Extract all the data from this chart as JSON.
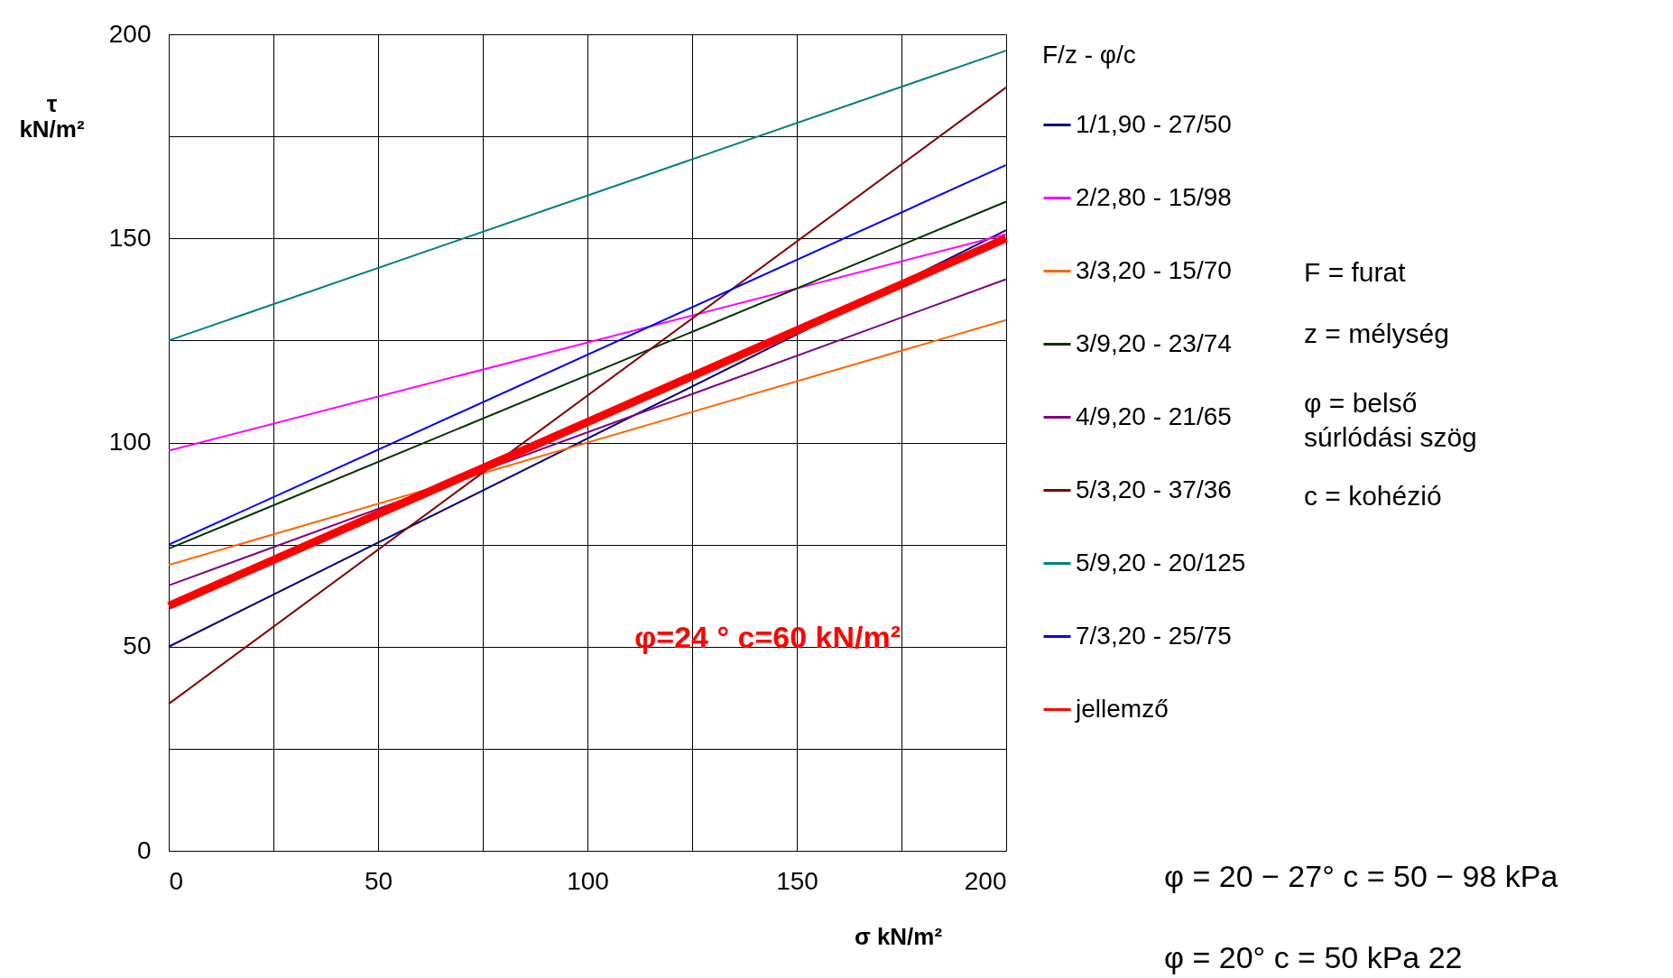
{
  "chart_data": {
    "type": "line",
    "xlabel": "σ  kN/m²",
    "ylabel": "τ\nkN/m²",
    "legend_title": "F/z   -   φ/c",
    "xlim": [
      0,
      200
    ],
    "ylim": [
      0,
      200
    ],
    "xticks": [
      0,
      {
        "value": 25,
        "label": null
      },
      50,
      {
        "value": 75,
        "label": null
      },
      100,
      {
        "value": 125,
        "label": null
      },
      150,
      {
        "value": 175,
        "label": null
      },
      200
    ],
    "yticks": [
      0,
      {
        "value": 25,
        "label": null
      },
      50,
      {
        "value": 75,
        "label": null
      },
      100,
      {
        "value": 125,
        "label": null
      },
      150,
      {
        "value": 175,
        "label": null
      },
      200
    ],
    "grid": true,
    "legend": "right",
    "marker": "none",
    "line_style": "solid",
    "x": [
      0,
      200
    ],
    "series": [
      {
        "name": "1/1,90 - 27/50",
        "color": "#000080",
        "values": [
          50,
          152
        ]
      },
      {
        "name": "2/2,80 - 15/98",
        "color": "#ff00ff",
        "values": [
          98,
          151
        ]
      },
      {
        "name": "3/3,20 - 15/70",
        "color": "#ff6600",
        "values": [
          70,
          130
        ]
      },
      {
        "name": "3/9,20 - 23/74",
        "color": "#003300",
        "values": [
          74,
          159
        ]
      },
      {
        "name": "4/9,20 - 21/65",
        "color": "#800080",
        "values": [
          65,
          140
        ]
      },
      {
        "name": "5/3,20 - 37/36",
        "color": "#800000",
        "values": [
          36,
          187
        ]
      },
      {
        "name": "5/9,20 - 20/125",
        "color": "#008080",
        "values": [
          125,
          196
        ]
      },
      {
        "name": "7/3,20 - 25/75",
        "color": "#0000ff",
        "values": [
          75,
          168
        ]
      },
      {
        "name": "jellemző",
        "color": "#ff0000",
        "values": [
          60,
          150
        ]
      }
    ],
    "annotations": [
      "φ=24 ° c=60 kN/m²",
      "F  =  furat",
      "z  =  mélység",
      "φ  =  belső\n        súrlódási szög",
      "c  =  kohézió",
      "φ = 20 − 27°     c = 50 − 98 kPa",
      "φ = 20°     c = 50 kPa  22"
    ]
  }
}
